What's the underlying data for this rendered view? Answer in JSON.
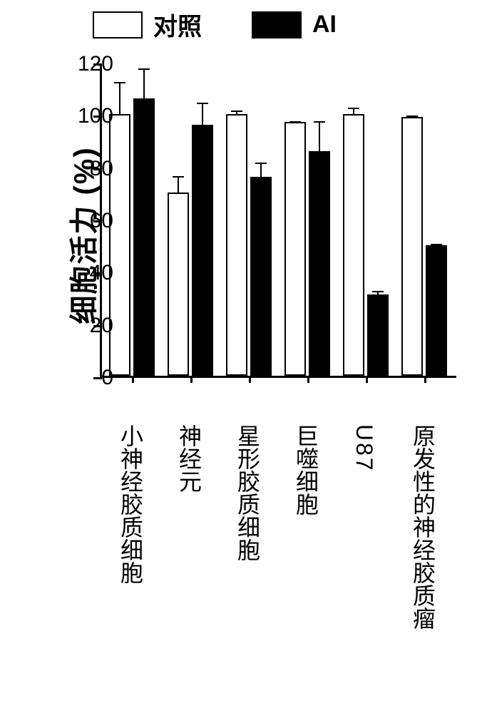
{
  "legend": {
    "control_label": "对照",
    "ai_label": "AI",
    "control_color": "#ffffff",
    "ai_color": "#000000",
    "border": "#000000"
  },
  "chart": {
    "type": "bar",
    "ylabel": "细胞活力 (%)",
    "ylim": [
      0,
      120
    ],
    "yticks": [
      0,
      20,
      40,
      60,
      80,
      100,
      120
    ],
    "background": "#ffffff",
    "axis_color": "#000000",
    "bar_border": "#000000",
    "control_fill": "#ffffff",
    "ai_fill": "#000000",
    "groups": [
      {
        "label": "小神经胶质细胞",
        "control": 100,
        "control_err": 13,
        "ai": 106,
        "ai_err": 12,
        "en": false
      },
      {
        "label": "神经元",
        "control": 70,
        "control_err": 7,
        "ai": 96,
        "ai_err": 9,
        "en": false
      },
      {
        "label": "星形胶质细胞",
        "control": 100,
        "control_err": 2,
        "ai": 76,
        "ai_err": 6,
        "en": false
      },
      {
        "label": "巨噬细胞",
        "control": 97,
        "control_err": 1,
        "ai": 86,
        "ai_err": 12,
        "en": false
      },
      {
        "label": "U87",
        "control": 100,
        "control_err": 3,
        "ai": 31,
        "ai_err": 2,
        "en": true
      },
      {
        "label": "原发性的神经胶质瘤",
        "control": 99,
        "control_err": 1,
        "ai": 50,
        "ai_err": 1,
        "en": false
      }
    ]
  }
}
